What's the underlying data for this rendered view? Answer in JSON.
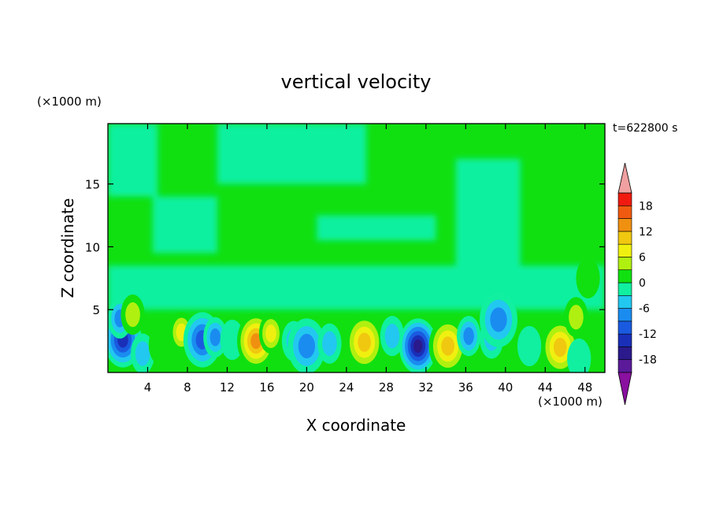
{
  "chart_data": {
    "type": "heatmap",
    "title": "vertical velocity",
    "xlabel": "X coordinate",
    "ylabel": "Z coordinate",
    "x_unit_label": "(×1000 m)",
    "y_unit_label": "(×1000 m)",
    "time_label": "t=622800 s",
    "xlim": [
      0,
      50
    ],
    "ylim": [
      0,
      19.8
    ],
    "x_ticks": [
      4,
      8,
      12,
      16,
      20,
      24,
      28,
      32,
      36,
      40,
      44,
      48
    ],
    "x_ticklabels": [
      "4",
      "8",
      "12",
      "16",
      "20",
      "24",
      "28",
      "32",
      "36",
      "40",
      "44",
      "48"
    ],
    "y_ticks": [
      5,
      10,
      15
    ],
    "y_ticklabels": [
      "5",
      "10",
      "15"
    ],
    "colorbar": {
      "levels": [
        -21,
        -18,
        -15,
        -12,
        -9,
        -6,
        -3,
        0,
        3,
        6,
        9,
        12,
        15,
        18,
        21
      ],
      "labeled_ticks": [
        -18,
        -12,
        -6,
        0,
        6,
        12,
        18
      ],
      "labeled_ticklabels": [
        "-18",
        "-12",
        "-6",
        "0",
        "6",
        "12",
        "18"
      ],
      "colors": [
        "#5a1a9a",
        "#2a1a8c",
        "#1a2fb8",
        "#1a5ae0",
        "#1a8cf0",
        "#22c8f0",
        "#10f0a0",
        "#10e010",
        "#b0f010",
        "#f0f010",
        "#f0c810",
        "#f09010",
        "#f05a10",
        "#f01a10"
      ],
      "under_color": "#8a10a0",
      "over_color": "#f0a0a0"
    },
    "cells": [
      {
        "x": 1.5,
        "z": 2.6,
        "w": -15
      },
      {
        "x": 1.2,
        "z": 4.3,
        "w": -7
      },
      {
        "x": 2.5,
        "z": 4.6,
        "w": 4
      },
      {
        "x": 3.5,
        "z": 1.5,
        "w": -5
      },
      {
        "x": 5.3,
        "z": 2.2,
        "w": 3
      },
      {
        "x": 7.4,
        "z": 3.2,
        "w": 7
      },
      {
        "x": 9.5,
        "z": 2.6,
        "w": -10
      },
      {
        "x": 10.8,
        "z": 2.8,
        "w": -8
      },
      {
        "x": 12.5,
        "z": 2.6,
        "w": -3
      },
      {
        "x": 14.9,
        "z": 2.5,
        "w": 13
      },
      {
        "x": 16.4,
        "z": 3.1,
        "w": 7
      },
      {
        "x": 18.7,
        "z": 2.5,
        "w": -5
      },
      {
        "x": 20.0,
        "z": 2.1,
        "w": -9
      },
      {
        "x": 22.3,
        "z": 2.3,
        "w": -4
      },
      {
        "x": 25.8,
        "z": 2.4,
        "w": 10
      },
      {
        "x": 28.6,
        "z": 2.9,
        "w": -4
      },
      {
        "x": 31.2,
        "z": 2.1,
        "w": -18
      },
      {
        "x": 34.2,
        "z": 2.1,
        "w": 11
      },
      {
        "x": 36.3,
        "z": 2.9,
        "w": -7
      },
      {
        "x": 38.6,
        "z": 2.7,
        "w": -5
      },
      {
        "x": 39.3,
        "z": 4.2,
        "w": -9
      },
      {
        "x": 42.4,
        "z": 2.1,
        "w": -3
      },
      {
        "x": 45.5,
        "z": 2.0,
        "w": 11
      },
      {
        "x": 47.1,
        "z": 4.4,
        "w": 4
      },
      {
        "x": 47.4,
        "z": 1.1,
        "w": -3
      },
      {
        "x": 48.3,
        "z": 7.5,
        "w": 3
      }
    ],
    "near_zero_regions": [
      {
        "x0": 0,
        "x1": 5,
        "z0": 14,
        "z1": 19.8
      },
      {
        "x0": 11,
        "x1": 26,
        "z0": 15,
        "z1": 19.8
      },
      {
        "x0": 21,
        "x1": 33,
        "z0": 10.5,
        "z1": 12.5
      },
      {
        "x0": 4.5,
        "x1": 11,
        "z0": 9.5,
        "z1": 14
      },
      {
        "x0": 35,
        "x1": 41.5,
        "z0": 8,
        "z1": 17
      },
      {
        "x0": 0,
        "x1": 50,
        "z0": 5,
        "z1": 8.5
      }
    ]
  }
}
